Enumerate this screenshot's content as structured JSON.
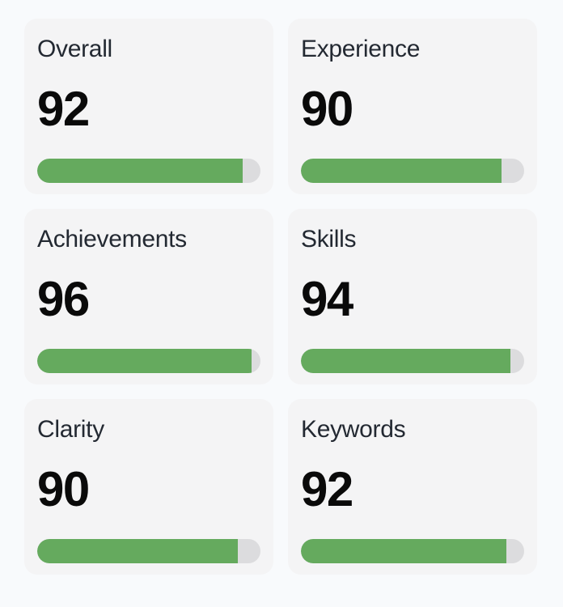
{
  "theme": {
    "page_bg": "#f8fafc",
    "card_bg": "#f4f4f5",
    "bar_fill": "#65aa5e",
    "bar_track": "#dcdcde",
    "label_color": "#232932",
    "value_color": "#0a0a0a"
  },
  "cards": [
    {
      "label": "Overall",
      "value": 92,
      "progress_percent": 92
    },
    {
      "label": "Experience",
      "value": 90,
      "progress_percent": 90
    },
    {
      "label": "Achievements",
      "value": 96,
      "progress_percent": 96
    },
    {
      "label": "Skills",
      "value": 94,
      "progress_percent": 94
    },
    {
      "label": "Clarity",
      "value": 90,
      "progress_percent": 90
    },
    {
      "label": "Keywords",
      "value": 92,
      "progress_percent": 92
    }
  ]
}
